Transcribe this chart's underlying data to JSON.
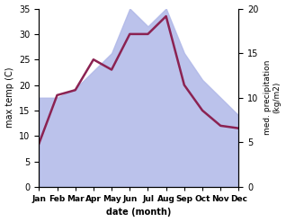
{
  "months": [
    "Jan",
    "Feb",
    "Mar",
    "Apr",
    "May",
    "Jun",
    "Jul",
    "Aug",
    "Sep",
    "Oct",
    "Nov",
    "Dec"
  ],
  "month_positions": [
    0,
    1,
    2,
    3,
    4,
    5,
    6,
    7,
    8,
    9,
    10,
    11
  ],
  "temperature": [
    8.5,
    18.0,
    19.0,
    25.0,
    23.0,
    30.0,
    30.0,
    33.5,
    20.0,
    15.0,
    12.0,
    11.5
  ],
  "precipitation_kg": [
    10,
    10,
    11,
    13,
    15,
    20,
    18,
    20,
    15,
    12,
    10,
    8
  ],
  "temp_ylim": [
    0,
    35
  ],
  "precip_ylim": [
    0,
    20
  ],
  "temp_color": "#8B2252",
  "precip_fill_color": "#b0b8e8",
  "background_color": "#ffffff",
  "xlabel": "date (month)",
  "ylabel_left": "max temp (C)",
  "ylabel_right": "med. precipitation\n(kg/m2)",
  "temp_yticks": [
    0,
    5,
    10,
    15,
    20,
    25,
    30,
    35
  ],
  "precip_yticks": [
    0,
    5,
    10,
    15,
    20
  ],
  "line_width": 1.8,
  "figwidth": 3.18,
  "figheight": 2.47,
  "dpi": 100
}
